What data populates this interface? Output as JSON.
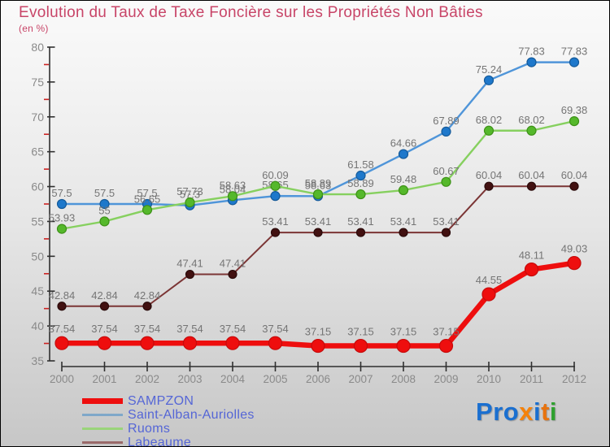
{
  "header": {
    "title": "Evolution du Taux de Taxe Foncière sur les Propriétés Non Bâties",
    "subtitle": "(en %)",
    "title_color": "#c84568"
  },
  "chart_data": {
    "type": "line",
    "x": [
      2000,
      2001,
      2002,
      2003,
      2004,
      2005,
      2006,
      2007,
      2008,
      2009,
      2010,
      2011,
      2012
    ],
    "series": [
      {
        "name": "SAMPZON",
        "values": [
          37.54,
          37.54,
          37.54,
          37.54,
          37.54,
          37.54,
          37.15,
          37.15,
          37.15,
          37.15,
          44.55,
          48.11,
          49.03
        ],
        "line_color": "#ee0e0e",
        "line_width": 6.5,
        "dot_color": "#ee0e0e",
        "dot_stroke": "#c50b0b",
        "dot_radius": 8,
        "label_offset": 13
      },
      {
        "name": "Saint-Alban-Auriolles",
        "values": [
          57.5,
          57.5,
          57.5,
          57.3,
          58.04,
          58.65,
          58.63,
          61.58,
          64.66,
          67.89,
          75.24,
          77.83,
          77.83
        ],
        "line_color": "#4f95d9",
        "line_width": 2.4,
        "dot_color": "#1e78cb",
        "dot_stroke": "#155a99",
        "dot_radius": 5.5,
        "label_offset": 9
      },
      {
        "name": "Ruoms",
        "values": [
          53.93,
          55,
          56.65,
          57.73,
          58.63,
          60.09,
          58.89,
          58.89,
          59.48,
          60.67,
          68.02,
          68.02,
          69.38
        ],
        "line_color": "#86d05f",
        "line_width": 2.4,
        "dot_color": "#55b82b",
        "dot_stroke": "#3d9117",
        "dot_radius": 5.5,
        "label_offset": 9
      },
      {
        "name": "Labeaume",
        "values": [
          42.84,
          42.84,
          42.84,
          47.41,
          47.41,
          53.41,
          53.41,
          53.41,
          53.41,
          53.41,
          60.04,
          60.04,
          60.04
        ],
        "line_color": "#7b3535",
        "line_width": 2,
        "dot_color": "#421111",
        "dot_stroke": "#2a0a0a",
        "dot_radius": 5,
        "label_offset": 9
      }
    ],
    "ylim": [
      35,
      80
    ],
    "y_major_step": 5,
    "y_minor_step": 2.5,
    "grid": false,
    "legend_position": "bottom-left",
    "axis_color": "#2f2f2f",
    "minor_tick_color": "#cc2222",
    "label_color": "#757575"
  },
  "legend": {
    "items": [
      {
        "label": "SAMPZON",
        "color": "#ee0e0e",
        "thickness": 7
      },
      {
        "label": "Saint-Alban-Auriolles",
        "color": "#7fa8c9",
        "thickness": 3
      },
      {
        "label": "Ruoms",
        "color": "#9ad47a",
        "thickness": 3
      },
      {
        "label": "Labeaume",
        "color": "#996a6a",
        "thickness": 3
      }
    ]
  },
  "logo": {
    "letters": [
      {
        "ch": "P",
        "color": "#1a6fd0"
      },
      {
        "ch": "r",
        "color": "#1a6fd0"
      },
      {
        "ch": "o",
        "color": "#1a6fd0"
      },
      {
        "ch": "x",
        "color": "#f5820a"
      },
      {
        "ch": "i",
        "color": "#1a6fd0"
      },
      {
        "ch": "t",
        "color": "#e8730e"
      },
      {
        "ch": "i",
        "color": "#2ea02e"
      }
    ]
  }
}
